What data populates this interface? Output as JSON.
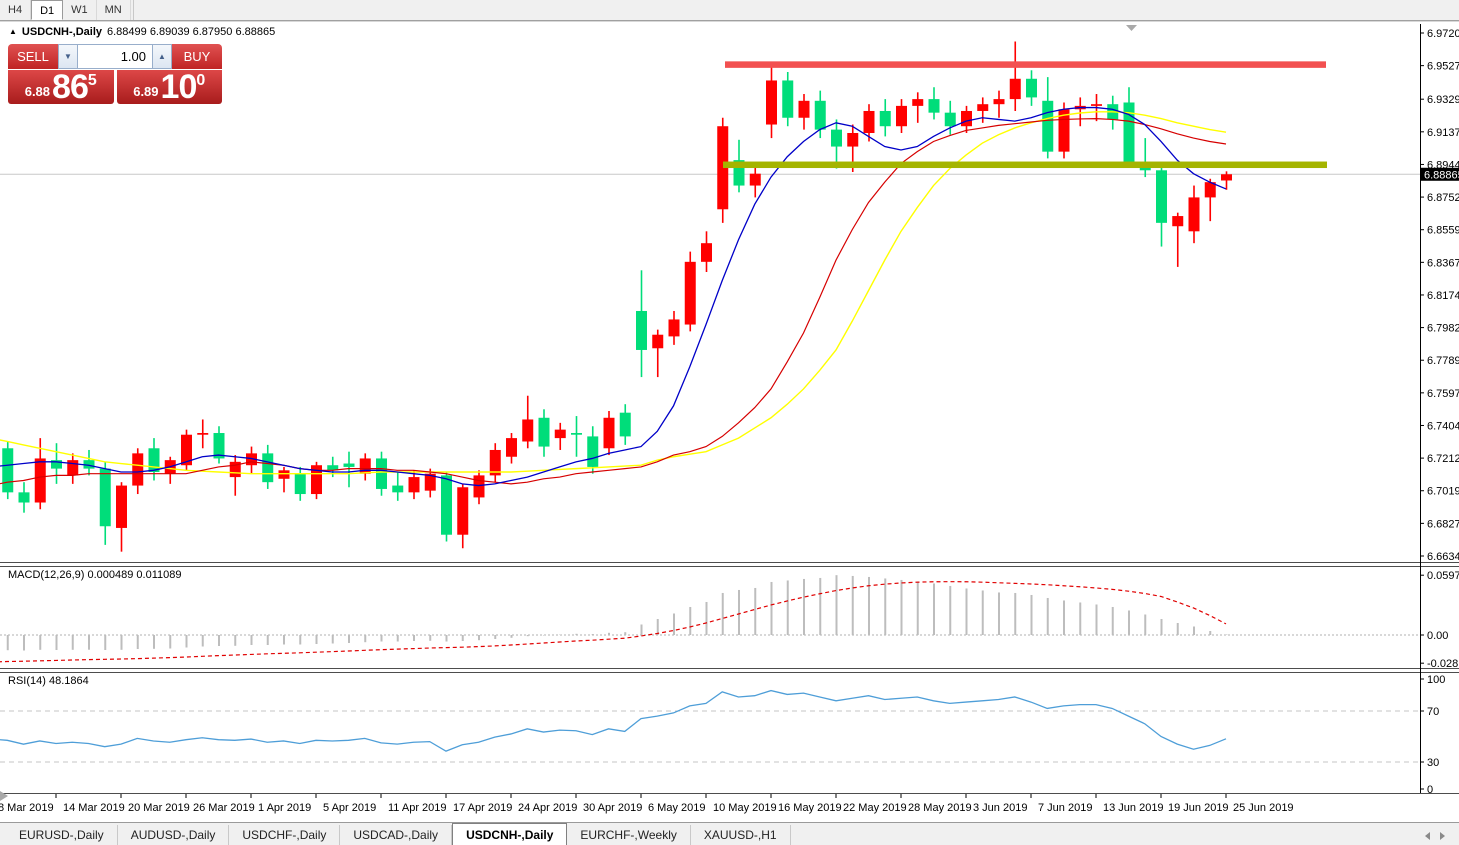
{
  "toolbar": {
    "timeframes": [
      "H4",
      "D1",
      "W1",
      "MN"
    ],
    "active_timeframe": "D1"
  },
  "quote_header": {
    "symbol": "USDCNH-,Daily",
    "ohlc_text": "6.88499 6.89039 6.87950 6.88865"
  },
  "trade_widget": {
    "sell_label": "SELL",
    "buy_label": "BUY",
    "volume": "1.00",
    "sell_price": {
      "small": "6.88",
      "big": "86",
      "sup": "5"
    },
    "buy_price": {
      "small": "6.89",
      "big": "10",
      "sup": "0"
    }
  },
  "indicators": {
    "macd_label": "MACD(12,26,9) 0.000489 0.011089",
    "rsi_label": "RSI(14) 48.1864"
  },
  "tabs": {
    "items": [
      "EURUSD-,Daily",
      "AUDUSD-,Daily",
      "USDCHF-,Daily",
      "USDCAD-,Daily",
      "USDCNH-,Daily",
      "EURCHF-,Weekly",
      "XAUUSD-,H1"
    ],
    "active_index": 4
  },
  "colors": {
    "candle_up": "#ff0000",
    "candle_down": "#00dd7a",
    "ma_fast": "#0000c8",
    "ma_mid": "#d60000",
    "ma_slow": "#ffff00",
    "macd_hist": "#bdbdbd",
    "macd_signal": "#e00000",
    "rsi_line": "#4e9ed8",
    "resistance_band": "#f25050",
    "support_band": "#a4b400",
    "price_line": "#c8c8c8",
    "price_tag_bg": "#000000",
    "price_tag_text": "#ffffff",
    "grid_dash": "#c4c4c4",
    "axis_line": "#000000"
  },
  "chart_data": {
    "type": "candlestick",
    "title": "USDCNH-,Daily",
    "last_quote": {
      "open": 6.88499,
      "high": 6.89039,
      "low": 6.8795,
      "close": 6.88865,
      "current": "6.88865"
    },
    "price_axis": [
      "6.97200",
      "6.95275",
      "6.93295",
      "6.91370",
      "6.89445",
      "6.87520",
      "6.85595",
      "6.83670",
      "6.81745",
      "6.79820",
      "6.77895",
      "6.75970",
      "6.74045",
      "6.72120",
      "6.70195",
      "6.68270",
      "6.66345"
    ],
    "dates": [
      "8 Mar 2019",
      "14 Mar 2019",
      "20 Mar 2019",
      "26 Mar 2019",
      "1 Apr 2019",
      "5 Apr 2019",
      "11 Apr 2019",
      "17 Apr 2019",
      "24 Apr 2019",
      "30 Apr 2019",
      "6 May 2019",
      "10 May 2019",
      "16 May 2019",
      "22 May 2019",
      "28 May 2019",
      "3 Jun 2019",
      "7 Jun 2019",
      "13 Jun 2019",
      "19 Jun 2019",
      "25 Jun 2019"
    ],
    "levels": {
      "resistance": 6.9535,
      "support": 6.8944
    },
    "ohlc": [
      [
        6.731,
        6.738,
        6.722,
        6.727
      ],
      [
        6.727,
        6.731,
        6.697,
        6.701
      ],
      [
        6.701,
        6.707,
        6.689,
        6.695
      ],
      [
        6.695,
        6.733,
        6.691,
        6.721
      ],
      [
        6.72,
        6.73,
        6.706,
        6.715
      ],
      [
        6.711,
        6.724,
        6.706,
        6.72
      ],
      [
        6.72,
        6.726,
        6.711,
        6.715
      ],
      [
        6.715,
        6.719,
        6.67,
        6.681
      ],
      [
        6.68,
        6.707,
        6.666,
        6.705
      ],
      [
        6.705,
        6.727,
        6.7,
        6.724
      ],
      [
        6.727,
        6.733,
        6.708,
        6.713
      ],
      [
        6.712,
        6.722,
        6.706,
        6.72
      ],
      [
        6.717,
        6.738,
        6.714,
        6.735
      ],
      [
        6.735,
        6.744,
        6.727,
        6.736
      ],
      [
        6.736,
        6.74,
        6.718,
        6.721
      ],
      [
        6.71,
        6.723,
        6.699,
        6.719
      ],
      [
        6.717,
        6.728,
        6.712,
        6.724
      ],
      [
        6.724,
        6.729,
        6.703,
        6.707
      ],
      [
        6.709,
        6.716,
        6.701,
        6.714
      ],
      [
        6.712,
        6.716,
        6.696,
        6.7
      ],
      [
        6.7,
        6.719,
        6.697,
        6.717
      ],
      [
        6.717,
        6.722,
        6.71,
        6.714
      ],
      [
        6.718,
        6.725,
        6.704,
        6.716
      ],
      [
        6.712,
        6.724,
        6.708,
        6.721
      ],
      [
        6.721,
        6.725,
        6.699,
        6.703
      ],
      [
        6.705,
        6.713,
        6.696,
        6.701
      ],
      [
        6.701,
        6.714,
        6.697,
        6.71
      ],
      [
        6.702,
        6.715,
        6.698,
        6.712
      ],
      [
        6.711,
        6.713,
        6.672,
        6.676
      ],
      [
        6.676,
        6.706,
        6.668,
        6.704
      ],
      [
        6.698,
        6.714,
        6.694,
        6.711
      ],
      [
        6.711,
        6.73,
        6.707,
        6.726
      ],
      [
        6.722,
        6.736,
        6.718,
        6.733
      ],
      [
        6.731,
        6.758,
        6.727,
        6.744
      ],
      [
        6.745,
        6.75,
        6.722,
        6.728
      ],
      [
        6.733,
        6.742,
        6.726,
        6.738
      ],
      [
        6.736,
        6.746,
        6.722,
        6.735
      ],
      [
        6.734,
        6.74,
        6.712,
        6.716
      ],
      [
        6.727,
        6.749,
        6.723,
        6.745
      ],
      [
        6.748,
        6.753,
        6.729,
        6.734
      ],
      [
        6.808,
        6.832,
        6.769,
        6.785
      ],
      [
        6.786,
        6.797,
        6.769,
        6.794
      ],
      [
        6.793,
        6.808,
        6.788,
        6.803
      ],
      [
        6.8,
        6.843,
        6.796,
        6.837
      ],
      [
        6.837,
        6.855,
        6.831,
        6.848
      ],
      [
        6.868,
        6.922,
        6.86,
        6.917
      ],
      [
        6.897,
        6.909,
        6.878,
        6.882
      ],
      [
        6.882,
        6.893,
        6.875,
        6.889
      ],
      [
        6.918,
        6.953,
        6.91,
        6.944
      ],
      [
        6.944,
        6.949,
        6.917,
        6.922
      ],
      [
        6.922,
        6.936,
        6.915,
        6.932
      ],
      [
        6.932,
        6.938,
        6.91,
        6.915
      ],
      [
        6.915,
        6.921,
        6.892,
        6.905
      ],
      [
        6.905,
        6.918,
        6.89,
        6.913
      ],
      [
        6.913,
        6.93,
        6.908,
        6.926
      ],
      [
        6.926,
        6.933,
        6.911,
        6.917
      ],
      [
        6.917,
        6.933,
        6.913,
        6.929
      ],
      [
        6.929,
        6.937,
        6.919,
        6.933
      ],
      [
        6.933,
        6.94,
        6.921,
        6.925
      ],
      [
        6.925,
        6.932,
        6.912,
        6.917
      ],
      [
        6.917,
        6.929,
        6.913,
        6.926
      ],
      [
        6.926,
        6.934,
        6.919,
        6.93
      ],
      [
        6.93,
        6.938,
        6.922,
        6.933
      ],
      [
        6.933,
        6.967,
        6.926,
        6.945
      ],
      [
        6.945,
        6.95,
        6.929,
        6.934
      ],
      [
        6.932,
        6.946,
        6.898,
        6.902
      ],
      [
        6.902,
        6.931,
        6.898,
        6.927
      ],
      [
        6.927,
        6.934,
        6.917,
        6.929
      ],
      [
        6.929,
        6.936,
        6.92,
        6.93
      ],
      [
        6.93,
        6.935,
        6.915,
        6.921
      ],
      [
        6.931,
        6.94,
        6.893,
        6.895
      ],
      [
        6.895,
        6.91,
        6.887,
        6.891
      ],
      [
        6.891,
        6.893,
        6.846,
        6.86
      ],
      [
        6.858,
        6.866,
        6.834,
        6.864
      ],
      [
        6.855,
        6.882,
        6.848,
        6.875
      ],
      [
        6.875,
        6.886,
        6.861,
        6.884
      ],
      [
        6.88499,
        6.89039,
        6.8795,
        6.88865
      ]
    ],
    "ma_fast_blue": [
      6.716,
      6.717,
      6.718,
      6.719,
      6.719,
      6.718,
      6.717,
      6.715,
      6.713,
      6.713,
      6.714,
      6.716,
      6.719,
      6.722,
      6.723,
      6.722,
      6.721,
      6.719,
      6.717,
      6.715,
      6.714,
      6.713,
      6.713,
      6.714,
      6.714,
      6.713,
      6.712,
      6.711,
      6.709,
      6.706,
      6.705,
      6.706,
      6.708,
      6.71,
      6.713,
      6.716,
      6.719,
      6.721,
      6.724,
      6.726,
      6.728,
      6.737,
      6.752,
      6.775,
      6.8,
      6.826,
      6.85,
      6.871,
      6.887,
      6.899,
      6.908,
      6.915,
      6.919,
      6.917,
      6.911,
      6.905,
      6.903,
      6.905,
      6.911,
      6.916,
      6.92,
      6.922,
      6.921,
      6.92,
      6.922,
      6.925,
      6.927,
      6.928,
      6.928,
      6.927,
      6.924,
      6.918,
      6.908,
      6.897,
      6.889,
      6.884,
      6.88
    ],
    "ma_mid_red": [
      6.705,
      6.707,
      6.708,
      6.71,
      6.711,
      6.711,
      6.712,
      6.712,
      6.712,
      6.712,
      6.712,
      6.712,
      6.712,
      6.714,
      6.716,
      6.717,
      6.719,
      6.718,
      6.717,
      6.715,
      6.714,
      6.714,
      6.715,
      6.715,
      6.715,
      6.714,
      6.714,
      6.713,
      6.712,
      6.71,
      6.708,
      6.707,
      6.706,
      6.707,
      6.709,
      6.71,
      6.712,
      6.713,
      6.714,
      6.715,
      6.716,
      6.719,
      6.723,
      6.725,
      6.728,
      6.734,
      6.742,
      6.751,
      6.762,
      6.778,
      6.795,
      6.816,
      6.838,
      6.856,
      6.872,
      6.884,
      6.895,
      6.902,
      6.908,
      6.9115,
      6.9145,
      6.916,
      6.9175,
      6.9185,
      6.9195,
      6.9205,
      6.921,
      6.9213,
      6.9215,
      6.921,
      6.92,
      6.918,
      6.9155,
      6.9125,
      6.91,
      6.908,
      6.9065
    ],
    "ma_slow_yellow": [
      6.733,
      6.731,
      6.729,
      6.727,
      6.725,
      6.723,
      6.721,
      6.719,
      6.718,
      6.717,
      6.716,
      6.715,
      6.714,
      6.7135,
      6.713,
      6.7125,
      6.712,
      6.712,
      6.712,
      6.712,
      6.712,
      6.712,
      6.712,
      6.7125,
      6.713,
      6.713,
      6.713,
      6.713,
      6.713,
      6.713,
      6.713,
      6.713,
      6.713,
      6.7135,
      6.714,
      6.7145,
      6.715,
      6.7155,
      6.716,
      6.7165,
      6.717,
      6.72,
      6.722,
      6.7235,
      6.725,
      6.729,
      6.733,
      6.739,
      6.745,
      6.753,
      6.762,
      6.773,
      6.785,
      6.802,
      6.82,
      6.838,
      6.855,
      6.869,
      6.882,
      6.892,
      6.9,
      6.907,
      6.912,
      6.916,
      6.919,
      6.9215,
      6.9235,
      6.9248,
      6.9255,
      6.9255,
      6.925,
      6.9235,
      6.9215,
      6.919,
      6.917,
      6.915,
      6.9135
    ],
    "macd": {
      "axis": [
        "0.059758",
        "0.00",
        "-0.02816"
      ],
      "histogram": [
        -0.015,
        -0.0152,
        -0.0155,
        -0.0148,
        -0.015,
        -0.0148,
        -0.0147,
        -0.015,
        -0.0148,
        -0.014,
        -0.0138,
        -0.0135,
        -0.0125,
        -0.0115,
        -0.011,
        -0.0108,
        -0.01,
        -0.01,
        -0.0095,
        -0.0095,
        -0.009,
        -0.0085,
        -0.008,
        -0.0072,
        -0.0065,
        -0.0065,
        -0.006,
        -0.0058,
        -0.0065,
        -0.006,
        -0.0052,
        -0.004,
        -0.0028,
        -0.0012,
        -0.0005,
        0.0005,
        0.0012,
        0.001,
        0.0022,
        0.0028,
        0.0105,
        0.016,
        0.0215,
        0.028,
        0.033,
        0.042,
        0.045,
        0.047,
        0.053,
        0.0545,
        0.056,
        0.057,
        0.0598,
        0.059,
        0.058,
        0.0565,
        0.055,
        0.0535,
        0.0515,
        0.049,
        0.0465,
        0.0445,
        0.0425,
        0.042,
        0.04,
        0.037,
        0.0345,
        0.0325,
        0.0305,
        0.028,
        0.0245,
        0.0205,
        0.016,
        0.012,
        0.0085,
        0.004,
        0.000489
      ],
      "signal": [
        -0.027,
        -0.0265,
        -0.0262,
        -0.0258,
        -0.0254,
        -0.025,
        -0.0246,
        -0.0243,
        -0.024,
        -0.0236,
        -0.0231,
        -0.0226,
        -0.022,
        -0.0213,
        -0.0206,
        -0.02,
        -0.0194,
        -0.0188,
        -0.0183,
        -0.0178,
        -0.0172,
        -0.0166,
        -0.016,
        -0.0153,
        -0.0147,
        -0.0141,
        -0.0136,
        -0.013,
        -0.0126,
        -0.0122,
        -0.0116,
        -0.0109,
        -0.01,
        -0.009,
        -0.008,
        -0.007,
        -0.006,
        -0.0052,
        -0.0042,
        -0.0032,
        -0.001,
        0.0015,
        0.0045,
        0.008,
        0.012,
        0.0165,
        0.021,
        0.0255,
        0.03,
        0.034,
        0.0378,
        0.0412,
        0.0444,
        0.047,
        0.0492,
        0.0508,
        0.052,
        0.0528,
        0.0532,
        0.0533,
        0.0532,
        0.0528,
        0.0522,
        0.0516,
        0.051,
        0.0502,
        0.0492,
        0.0482,
        0.047,
        0.0456,
        0.0438,
        0.0415,
        0.0385,
        0.033,
        0.027,
        0.0195,
        0.0111
      ]
    },
    "rsi": {
      "axis": [
        "100",
        "70",
        "30",
        "0"
      ],
      "levels": [
        70,
        30
      ],
      "values": [
        48,
        47,
        44,
        46.5,
        44.5,
        45.5,
        44.5,
        42,
        44,
        48.5,
        46.5,
        45.5,
        47.5,
        49,
        47.5,
        47,
        48,
        45.5,
        46.5,
        44.5,
        47,
        46.5,
        47,
        48.5,
        45,
        44,
        45.5,
        46,
        38.5,
        43.5,
        45.5,
        49.5,
        52,
        56,
        53.5,
        55,
        54.5,
        51.5,
        56,
        54,
        64,
        66,
        68.5,
        74,
        76,
        85,
        81,
        82,
        86,
        83,
        84,
        81,
        78,
        80,
        82,
        79,
        80,
        81,
        78,
        76,
        77,
        78,
        79,
        81,
        77,
        72,
        74,
        75,
        75,
        72,
        66,
        60,
        50,
        44,
        40,
        43,
        48.19
      ]
    }
  }
}
